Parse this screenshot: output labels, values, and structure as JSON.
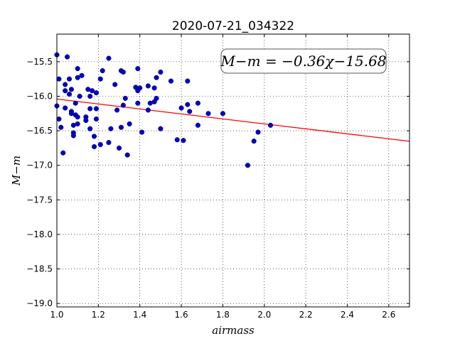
{
  "chart_data": {
    "type": "scatter",
    "title": "2020-07-21_034322",
    "xlabel": "airmass",
    "ylabel": "M−m",
    "xlim": [
      1.0,
      2.7
    ],
    "ylim": [
      -19.05,
      -15.1
    ],
    "x_ticks": [
      1.0,
      1.2,
      1.4,
      1.6,
      1.8,
      2.0,
      2.2,
      2.4,
      2.6
    ],
    "x_tick_labels": [
      "1.0",
      "1.2",
      "1.4",
      "1.6",
      "1.8",
      "2.0",
      "2.2",
      "2.4",
      "2.6"
    ],
    "y_ticks": [
      -15.5,
      -16.0,
      -16.5,
      -17.0,
      -17.5,
      -18.0,
      -18.5,
      -19.0
    ],
    "y_tick_labels": [
      "−15.5",
      "−16.0",
      "−16.5",
      "−17.0",
      "−17.5",
      "−18.0",
      "−18.5",
      "−19.0"
    ],
    "grid": true,
    "fit": {
      "slope": -0.36,
      "intercept": -15.68,
      "color": "#ff0000"
    },
    "annotation": "M−m = −0.36χ−15.68",
    "marker_color": "#0000cc",
    "points": [
      [
        1.0,
        -15.4
      ],
      [
        1.05,
        -15.43
      ],
      [
        1.01,
        -15.75
      ],
      [
        1.04,
        -15.83
      ],
      [
        1.06,
        -15.75
      ],
      [
        1.04,
        -15.92
      ],
      [
        1.07,
        -15.9
      ],
      [
        1.06,
        -15.97
      ],
      [
        1.1,
        -15.6
      ],
      [
        1.1,
        -15.73
      ],
      [
        1.12,
        -15.7
      ],
      [
        1.11,
        -16.0
      ],
      [
        1.09,
        -16.1
      ],
      [
        1.0,
        -16.14
      ],
      [
        1.04,
        -16.17
      ],
      [
        1.07,
        -16.22
      ],
      [
        1.07,
        -16.25
      ],
      [
        1.09,
        -16.27
      ],
      [
        1.1,
        -16.3
      ],
      [
        1.1,
        -16.4
      ],
      [
        1.08,
        -16.42
      ],
      [
        1.01,
        -16.33
      ],
      [
        1.02,
        -16.45
      ],
      [
        1.08,
        -16.53
      ],
      [
        1.08,
        -16.57
      ],
      [
        1.03,
        -16.82
      ],
      [
        1.15,
        -15.9
      ],
      [
        1.17,
        -15.92
      ],
      [
        1.16,
        -16.0
      ],
      [
        1.19,
        -15.95
      ],
      [
        1.16,
        -16.18
      ],
      [
        1.19,
        -16.18
      ],
      [
        1.14,
        -16.35
      ],
      [
        1.14,
        -16.3
      ],
      [
        1.19,
        -16.33
      ],
      [
        1.16,
        -16.47
      ],
      [
        1.18,
        -16.58
      ],
      [
        1.21,
        -16.7
      ],
      [
        1.18,
        -16.73
      ],
      [
        1.25,
        -16.67
      ],
      [
        1.22,
        -15.63
      ],
      [
        1.25,
        -15.45
      ],
      [
        1.21,
        -15.75
      ],
      [
        1.28,
        -15.83
      ],
      [
        1.31,
        -15.63
      ],
      [
        1.32,
        -15.65
      ],
      [
        1.33,
        -16.03
      ],
      [
        1.32,
        -16.13
      ],
      [
        1.29,
        -16.2
      ],
      [
        1.26,
        -16.47
      ],
      [
        1.31,
        -16.45
      ],
      [
        1.35,
        -16.4
      ],
      [
        1.3,
        -16.75
      ],
      [
        1.34,
        -16.85
      ],
      [
        1.39,
        -15.6
      ],
      [
        1.38,
        -15.87
      ],
      [
        1.4,
        -15.88
      ],
      [
        1.39,
        -15.92
      ],
      [
        1.39,
        -16.1
      ],
      [
        1.41,
        -16.52
      ],
      [
        1.44,
        -15.85
      ],
      [
        1.47,
        -15.88
      ],
      [
        1.48,
        -15.73
      ],
      [
        1.5,
        -15.65
      ],
      [
        1.48,
        -16.03
      ],
      [
        1.45,
        -16.1
      ],
      [
        1.47,
        -16.08
      ],
      [
        1.44,
        -16.2
      ],
      [
        1.5,
        -16.47
      ],
      [
        1.55,
        -15.78
      ],
      [
        1.63,
        -15.78
      ],
      [
        1.6,
        -16.17
      ],
      [
        1.63,
        -16.12
      ],
      [
        1.64,
        -16.22
      ],
      [
        1.68,
        -16.1
      ],
      [
        1.58,
        -16.63
      ],
      [
        1.61,
        -16.64
      ],
      [
        1.68,
        -16.42
      ],
      [
        1.73,
        -16.25
      ],
      [
        1.8,
        -16.25
      ],
      [
        1.92,
        -17.0
      ],
      [
        1.95,
        -16.65
      ],
      [
        1.97,
        -16.52
      ],
      [
        2.03,
        -16.42
      ]
    ]
  }
}
